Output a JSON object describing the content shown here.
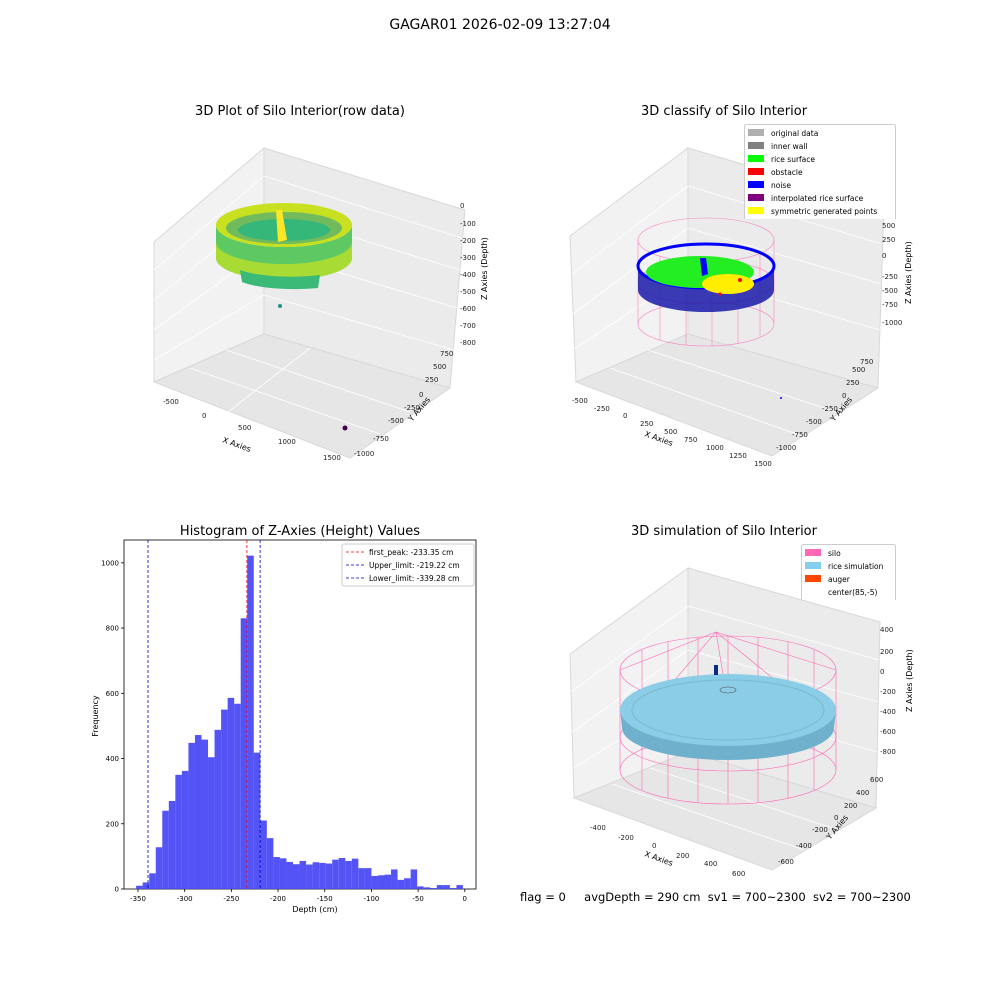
{
  "suptitle": "GAGAR01 2026-02-09 13:27:04",
  "panels": {
    "raw": {
      "title": "3D Plot of Silo Interior(row data)",
      "x_label": "X Axies",
      "y_label": "Y Axies",
      "z_label": "Z Axies (Depth)",
      "x_ticks": [
        "-500",
        "0",
        "500",
        "1000",
        "1500"
      ],
      "y_ticks": [
        "-1000",
        "-750",
        "-500",
        "-250",
        "0",
        "250",
        "500",
        "750"
      ],
      "z_ticks": [
        "0",
        "-100",
        "-200",
        "-300",
        "-400",
        "-500",
        "-600",
        "-700",
        "-800"
      ]
    },
    "classify": {
      "title": "3D classify of Silo Interior",
      "x_label": "X Axies",
      "y_label": "Y Axies",
      "z_label": "Z Axies (Depth)",
      "x_ticks": [
        "-500",
        "-250",
        "0",
        "250",
        "500",
        "750",
        "1000",
        "1250",
        "1500"
      ],
      "y_ticks": [
        "-1000",
        "-750",
        "-500",
        "-250",
        "0",
        "250",
        "500",
        "750"
      ],
      "z_ticks": [
        "750",
        "500",
        "250",
        "0",
        "-250",
        "-500",
        "-750",
        "-1000"
      ],
      "legend": [
        {
          "label": "original data",
          "color": "#b0b0b0"
        },
        {
          "label": "inner wall",
          "color": "#808080"
        },
        {
          "label": "rice surface",
          "color": "#00ff00"
        },
        {
          "label": "obstacle",
          "color": "#ff0000"
        },
        {
          "label": "noise",
          "color": "#0000ff"
        },
        {
          "label": "interpolated rice surface",
          "color": "#800080"
        },
        {
          "label": "symmetric generated points",
          "color": "#ffff00"
        }
      ]
    },
    "simulation": {
      "title": "3D simulation of Silo Interior",
      "x_label": "X Axies",
      "y_label": "Y Axies",
      "z_label": "Z Axies (Depth)",
      "x_ticks": [
        "-400",
        "-200",
        "0",
        "200",
        "400",
        "600"
      ],
      "y_ticks": [
        "-600",
        "-400",
        "-200",
        "0",
        "200",
        "400",
        "600"
      ],
      "z_ticks": [
        "400",
        "200",
        "0",
        "-200",
        "-400",
        "-600",
        "-800"
      ],
      "legend": [
        {
          "label": "silo",
          "color": "#ff69b4"
        },
        {
          "label": "rice simulation",
          "color": "#87ceeb"
        },
        {
          "label": "auger",
          "color": "#ff4500"
        },
        {
          "label": "center(85,-5)",
          "color": "none"
        }
      ]
    }
  },
  "chart_data": {
    "type": "bar",
    "title": "Histogram of Z-Axies (Height) Values",
    "xlabel": "Depth (cm)",
    "ylabel": "Frequency",
    "xlim": [
      -365,
      12
    ],
    "ylim": [
      0,
      1070
    ],
    "x_ticks": [
      -350,
      -300,
      -250,
      -200,
      -150,
      -100,
      -50,
      0
    ],
    "y_ticks": [
      0,
      200,
      400,
      600,
      800,
      1000
    ],
    "bin_width": 7,
    "bin_start": -352,
    "color": "#4a4af5",
    "values": [
      10,
      20,
      48,
      128,
      240,
      270,
      350,
      362,
      448,
      472,
      458,
      404,
      488,
      550,
      586,
      568,
      830,
      1022,
      418,
      210,
      156,
      98,
      94,
      83,
      76,
      86,
      75,
      82,
      80,
      78,
      90,
      95,
      86,
      93,
      64,
      64,
      40,
      42,
      44,
      60,
      28,
      33,
      60,
      8,
      5,
      3,
      12,
      12,
      3,
      12
    ],
    "vlines": [
      {
        "label": "first_peak: -233.35 cm",
        "x": -233.35,
        "color": "#ff0000"
      },
      {
        "label": "Upper_limit: -219.22 cm",
        "x": -219.22,
        "color": "#0000cc"
      },
      {
        "label": "Lower_limit: -339.28 cm",
        "x": -339.28,
        "color": "#0000cc"
      }
    ]
  },
  "footer": {
    "flag": "flag = 0",
    "avg_depth": "avgDepth = 290 cm",
    "sv1": "sv1 = 700~2300",
    "sv2": "sv2 = 700~2300"
  }
}
